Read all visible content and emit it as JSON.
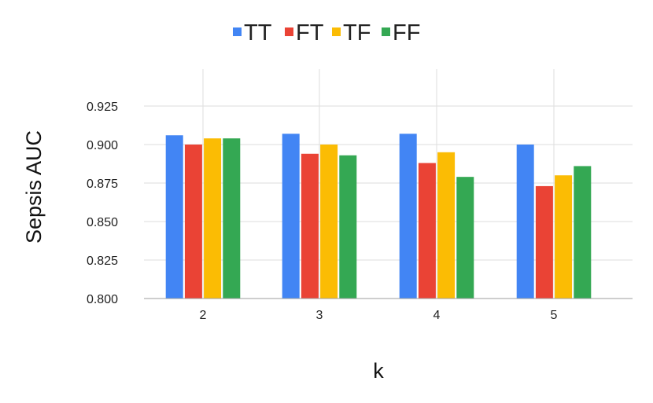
{
  "chart_data": {
    "type": "bar",
    "categories": [
      "2",
      "3",
      "4",
      "5"
    ],
    "series": [
      {
        "name": "TT",
        "color": "#4285F4",
        "values": [
          0.906,
          0.907,
          0.907,
          0.9
        ]
      },
      {
        "name": "FT",
        "color": "#EA4335",
        "values": [
          0.9,
          0.894,
          0.888,
          0.873
        ]
      },
      {
        "name": "TF",
        "color": "#FBBC04",
        "values": [
          0.904,
          0.9,
          0.895,
          0.88
        ]
      },
      {
        "name": "FF",
        "color": "#34A853",
        "values": [
          0.904,
          0.893,
          0.879,
          0.886
        ]
      }
    ],
    "xlabel": "k",
    "ylabel": "Sepsis AUC",
    "ylim": [
      0.8,
      0.925
    ],
    "yticks": [
      "0.800",
      "0.825",
      "0.850",
      "0.875",
      "0.900",
      "0.925"
    ],
    "grid": true,
    "legend_position": "top"
  }
}
